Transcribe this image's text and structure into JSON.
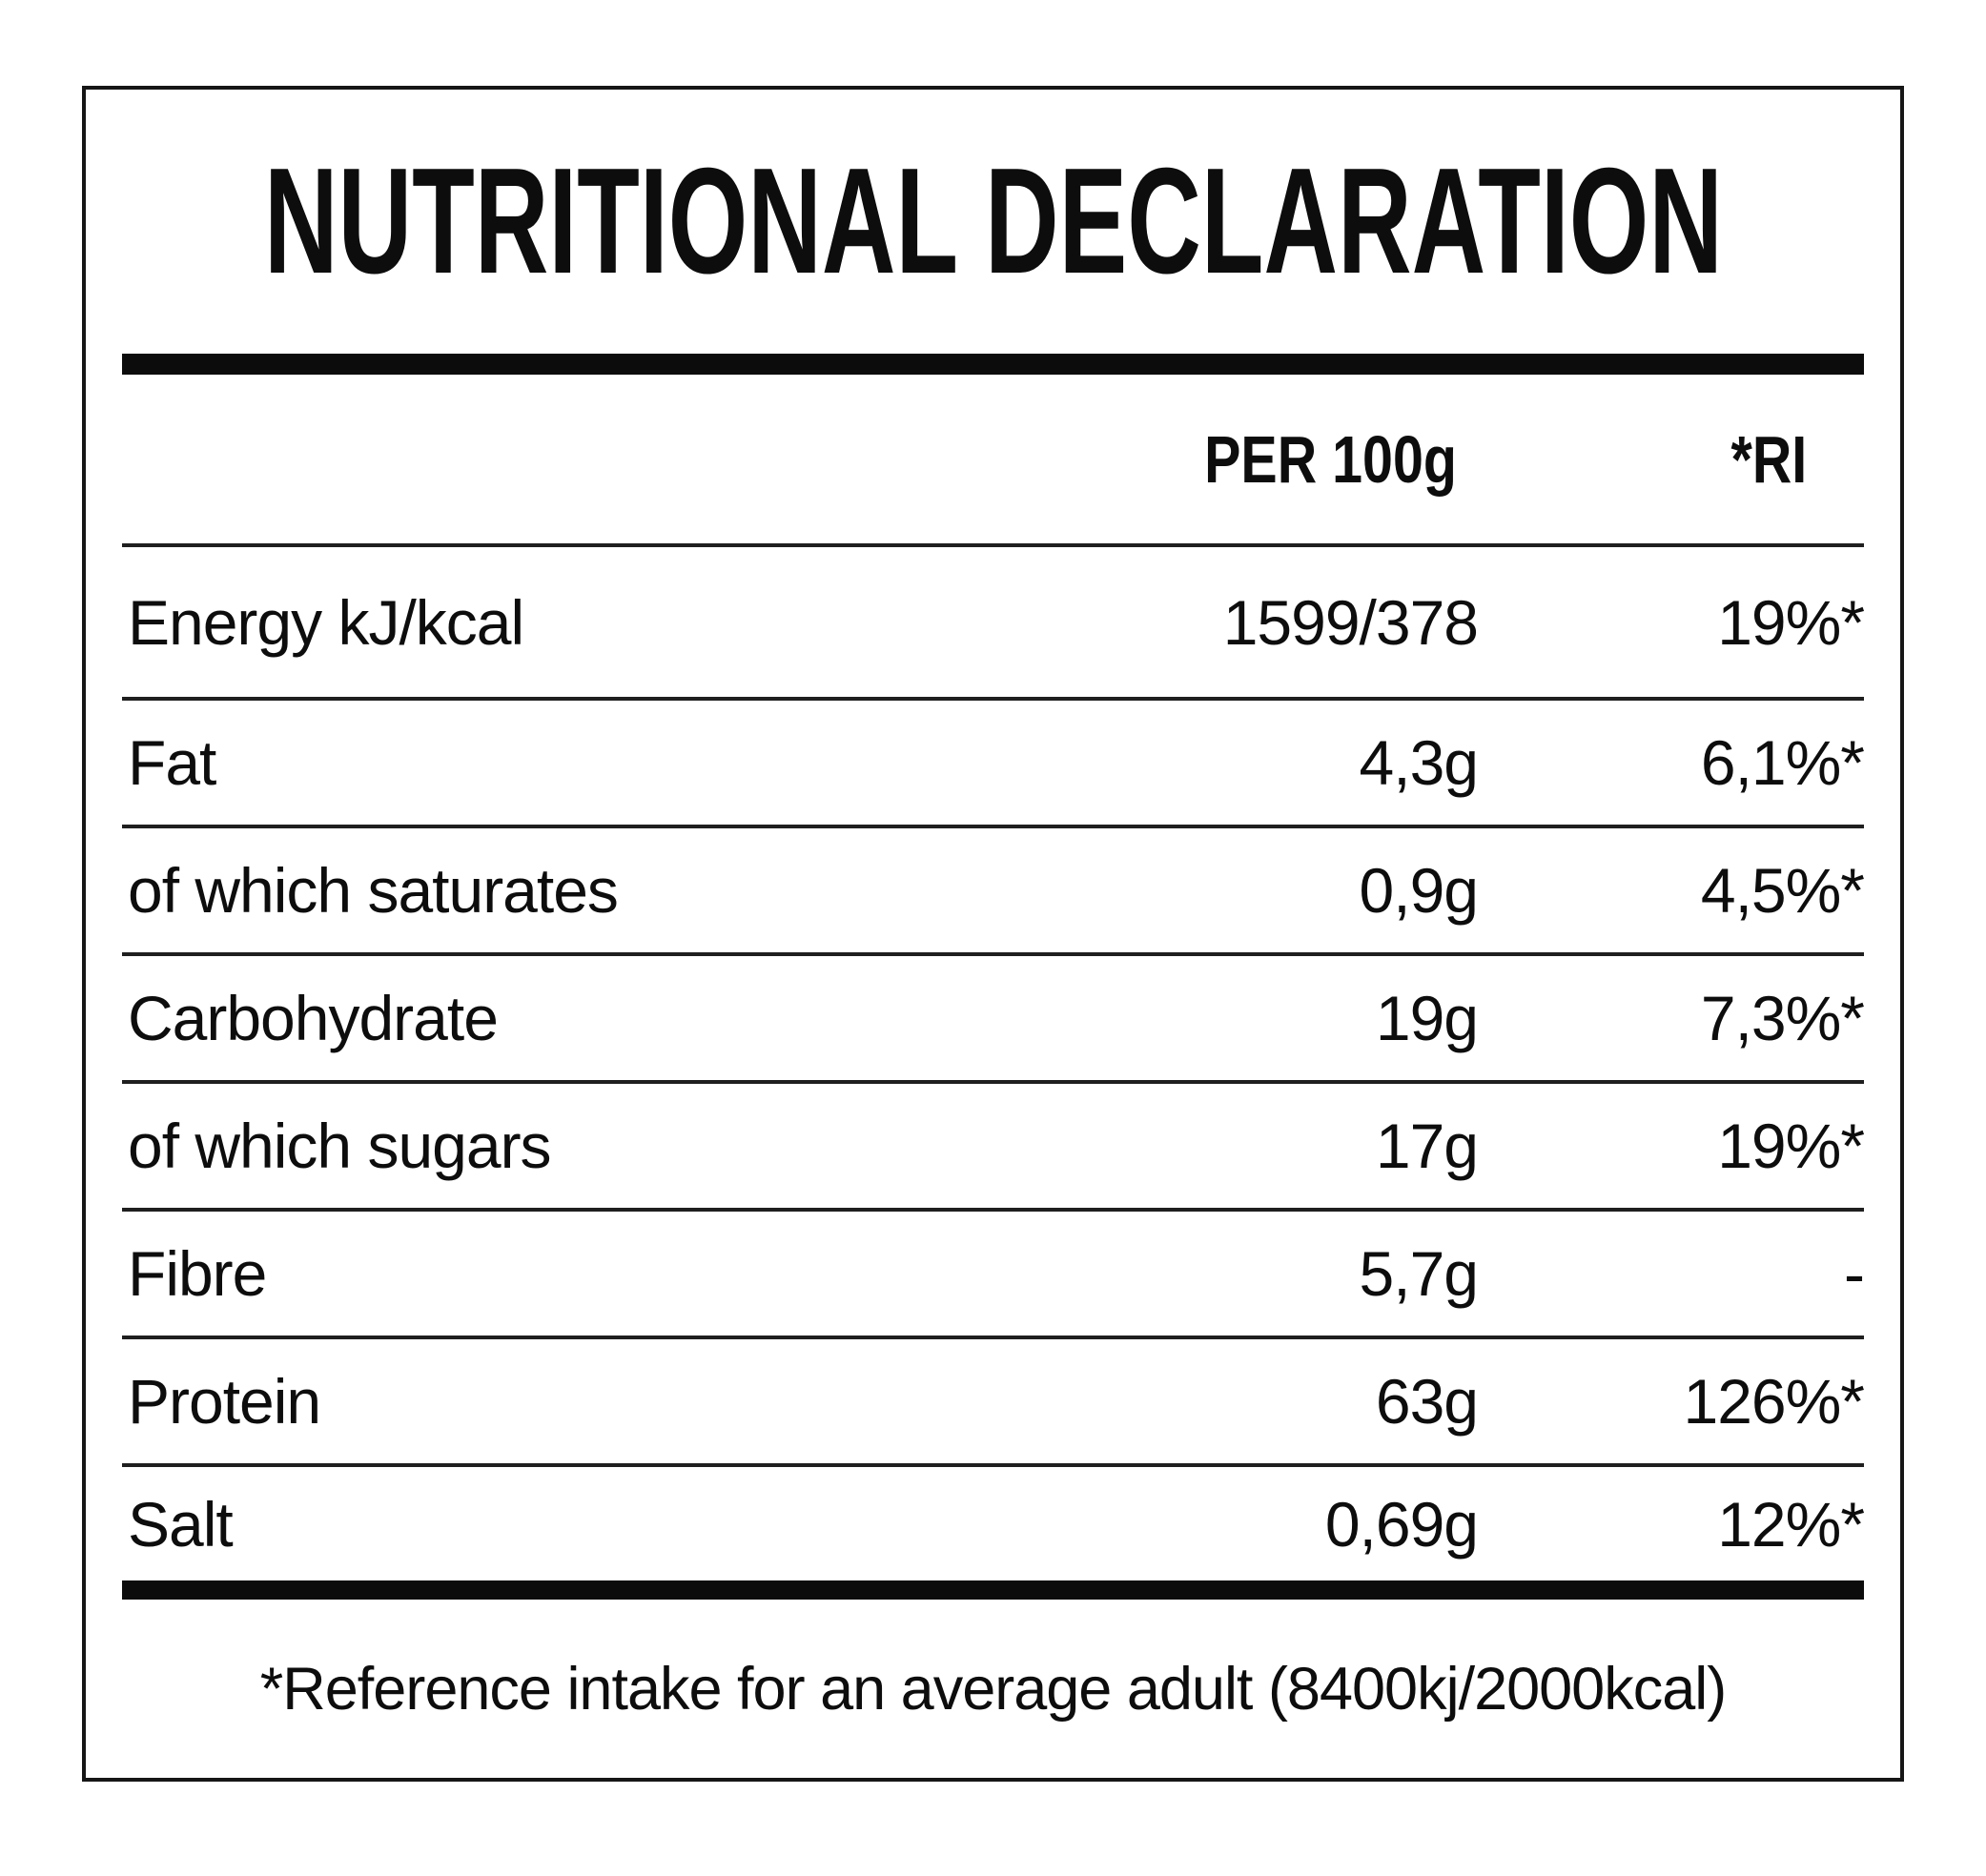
{
  "title": "NUTRITIONAL DECLARATION",
  "columns": {
    "per_100g": "PER 100g",
    "ri": "*RI"
  },
  "rows": [
    {
      "label": "Energy kJ/kcal",
      "per_100g": "1599/378",
      "ri": "19%*"
    },
    {
      "label": "Fat",
      "per_100g": "4,3g",
      "ri": "6,1%*"
    },
    {
      "label": "of which saturates",
      "per_100g": "0,9g",
      "ri": "4,5%*"
    },
    {
      "label": "Carbohydrate",
      "per_100g": "19g",
      "ri": "7,3%*"
    },
    {
      "label": "of which sugars",
      "per_100g": "17g",
      "ri": "19%*"
    },
    {
      "label": "Fibre",
      "per_100g": "5,7g",
      "ri": "-"
    },
    {
      "label": "Protein",
      "per_100g": "63g",
      "ri": "126%*"
    },
    {
      "label": "Salt",
      "per_100g": "0,69g",
      "ri": "12%*"
    }
  ],
  "footnote": "*Reference intake for an average adult (8400kj/2000kcal)",
  "colors": {
    "text": "#0d0d0d",
    "rule": "#0c0c0c",
    "border": "#161616",
    "background": "#ffffff"
  }
}
